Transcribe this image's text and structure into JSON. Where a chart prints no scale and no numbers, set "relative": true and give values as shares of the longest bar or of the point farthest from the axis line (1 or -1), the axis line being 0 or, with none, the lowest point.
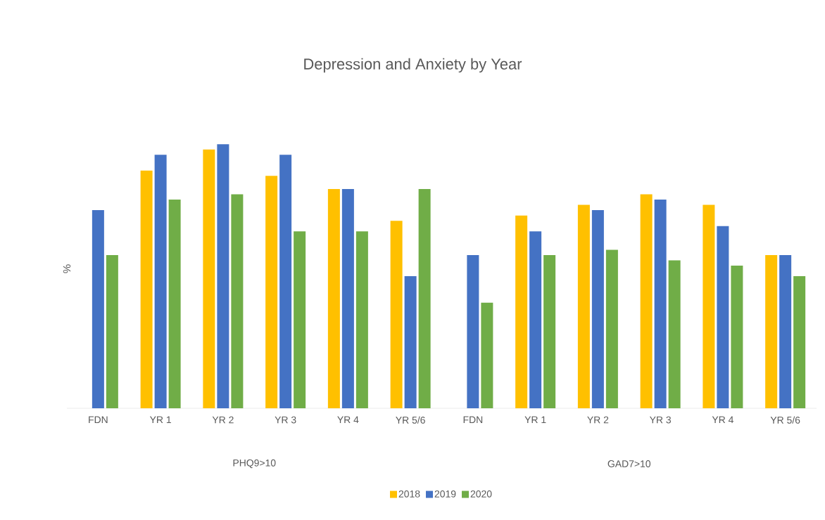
{
  "chart_data": {
    "type": "bar",
    "title": "Depression and Anxiety by Year",
    "ylabel": "%",
    "relative": true,
    "legend": "bottom",
    "categories": [
      "FDN",
      "YR 1",
      "YR 2",
      "YR 3",
      "YR 4",
      "YR 5/6",
      "FDN",
      "YR 1",
      "YR 2",
      "YR 3",
      "YR 4",
      "YR 5/6"
    ],
    "annotations": [
      "PHQ9>10",
      "GAD7>10"
    ],
    "series": [
      {
        "name": "2018",
        "color": "#ffc000",
        "values": [
          null,
          0.9,
          0.98,
          0.88,
          0.83,
          0.71,
          null,
          0.73,
          0.77,
          0.81,
          0.77,
          0.58
        ]
      },
      {
        "name": "2019",
        "color": "#4472c4",
        "values": [
          0.75,
          0.96,
          1,
          0.96,
          0.83,
          0.5,
          0.58,
          0.67,
          0.75,
          0.79,
          0.69,
          0.58
        ]
      },
      {
        "name": "2020",
        "color": "#70ad47",
        "values": [
          0.58,
          0.79,
          0.81,
          0.67,
          0.67,
          0.83,
          0.4,
          0.58,
          0.6,
          0.56,
          0.54,
          0.5
        ]
      }
    ]
  }
}
